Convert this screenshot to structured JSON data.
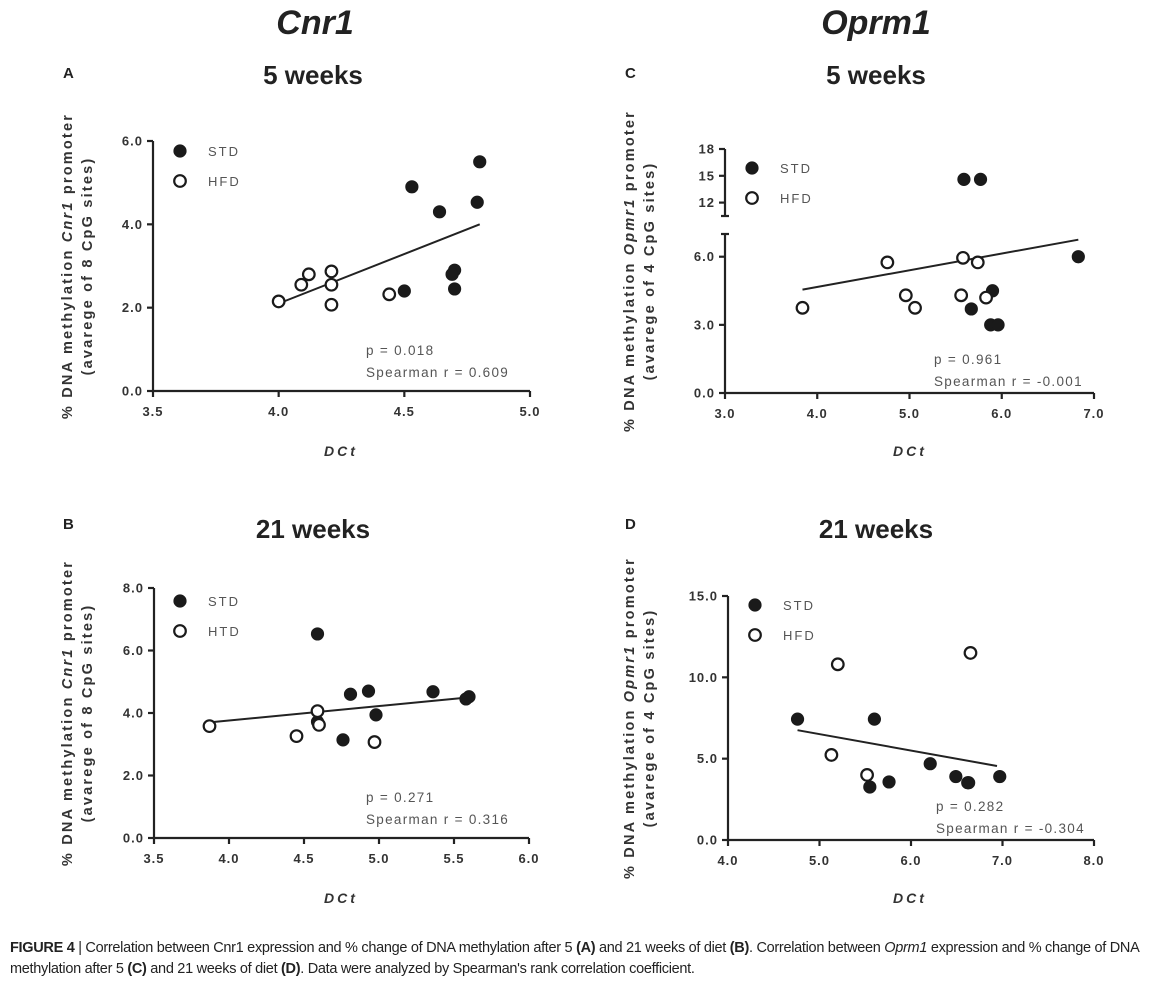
{
  "figure": {
    "gene_titles": [
      "Cnr1",
      "Oprm1"
    ],
    "caption": {
      "label": "FIGURE 4",
      "separator": " | ",
      "part1": "Correlation between Cnr1 expression and % change of DNA methylation after 5 ",
      "refA": "(A)",
      "part2": " and 21 weeks of diet ",
      "refB": "(B)",
      "part3": ". Correlation between ",
      "gene_italic": "Oprm1",
      "part4": " expression and % change of DNA methylation after 5 ",
      "refC": "(C)",
      "part5": " and 21 weeks of diet ",
      "refD": "(D)",
      "part6": ". Data were analyzed by Spearman's rank correlation coefficient."
    }
  },
  "chart_data": [
    {
      "panel": "A",
      "type": "scatter",
      "title": "5 weeks",
      "gene": "Cnr1",
      "xlabel": "DCt",
      "ylabel_line1_pre": "% DNA methylation ",
      "ylabel_line1_gene": "Cnr1",
      "ylabel_line1_post": " promoter",
      "ylabel_line2": "(avarege of 8 CpG sites)",
      "xlim": [
        3.5,
        5.0
      ],
      "xticks": [
        3.5,
        4.0,
        4.5,
        5.0
      ],
      "xtick_labels": [
        "3.5",
        "4.0",
        "4.5",
        "5.0"
      ],
      "ylim": [
        0,
        6.0
      ],
      "yticks": [
        0,
        2.0,
        4.0,
        6.0
      ],
      "ytick_labels": [
        "0.0",
        "2.0",
        "4.0",
        "6.0"
      ],
      "legend": "top-left",
      "series": [
        {
          "name": "STD",
          "marker": "filled-circle",
          "points": [
            [
              4.53,
              4.9
            ],
            [
              4.8,
              5.5
            ],
            [
              4.79,
              4.53
            ],
            [
              4.64,
              4.3
            ],
            [
              4.7,
              2.9
            ],
            [
              4.69,
              2.8
            ],
            [
              4.7,
              2.45
            ],
            [
              4.5,
              2.4
            ]
          ]
        },
        {
          "name": "HFD",
          "marker": "open-circle",
          "points": [
            [
              4.0,
              2.15
            ],
            [
              4.09,
              2.55
            ],
            [
              4.12,
              2.8
            ],
            [
              4.21,
              2.87
            ],
            [
              4.21,
              2.55
            ],
            [
              4.21,
              2.07
            ],
            [
              4.44,
              2.32
            ]
          ]
        }
      ],
      "fit_line": [
        [
          4.0,
          2.1
        ],
        [
          4.8,
          4.0
        ]
      ],
      "stats": {
        "p_text": "p = 0.018",
        "r_text": "Spearman r = 0.609",
        "p": 0.018,
        "r": 0.609
      }
    },
    {
      "panel": "B",
      "type": "scatter",
      "title": "21 weeks",
      "gene": "Cnr1",
      "xlabel": "DCt",
      "ylabel_line1_pre": "% DNA methylation ",
      "ylabel_line1_gene": "Cnr1",
      "ylabel_line1_post": " promoter",
      "ylabel_line2": "(avarege of 8 CpG sites)",
      "xlim": [
        3.5,
        6.0
      ],
      "xticks": [
        3.5,
        4.0,
        4.5,
        5.0,
        5.5,
        6.0
      ],
      "xtick_labels": [
        "3.5",
        "4.0",
        "4.5",
        "5.0",
        "5.5",
        "6.0"
      ],
      "ylim": [
        0,
        8.0
      ],
      "yticks": [
        0,
        2.0,
        4.0,
        6.0,
        8.0
      ],
      "ytick_labels": [
        "0.0",
        "2.0",
        "4.0",
        "6.0",
        "8.0"
      ],
      "legend": "top-left",
      "series": [
        {
          "name": "STD",
          "marker": "filled-circle",
          "points": [
            [
              4.59,
              6.53
            ],
            [
              4.81,
              4.6
            ],
            [
              4.93,
              4.7
            ],
            [
              5.36,
              4.68
            ],
            [
              5.6,
              4.52
            ],
            [
              5.58,
              4.45
            ],
            [
              4.98,
              3.94
            ],
            [
              4.59,
              3.72
            ],
            [
              4.76,
              3.14
            ]
          ]
        },
        {
          "name": "HTD",
          "marker": "open-circle",
          "points": [
            [
              3.87,
              3.58
            ],
            [
              4.59,
              4.06
            ],
            [
              4.6,
              3.62
            ],
            [
              4.45,
              3.26
            ],
            [
              4.97,
              3.07
            ]
          ]
        }
      ],
      "fit_line": [
        [
          3.87,
          3.7
        ],
        [
          5.6,
          4.5
        ]
      ],
      "stats": {
        "p_text": "p = 0.271",
        "r_text": "Spearman r = 0.316",
        "p": 0.271,
        "r": 0.316
      }
    },
    {
      "panel": "C",
      "type": "scatter",
      "title": "5 weeks",
      "gene": "Oprm1",
      "xlabel": "DCt",
      "ylabel_line1_pre": "% DNA methylation ",
      "ylabel_line1_gene": "Opmr1",
      "ylabel_line1_post": " promoter",
      "ylabel_line2": "(avarege of 4 CpG sites)",
      "xlim": [
        3.0,
        7.0
      ],
      "xticks": [
        3.0,
        4.0,
        5.0,
        6.0,
        7.0
      ],
      "xtick_labels": [
        "3.0",
        "4.0",
        "5.0",
        "6.0",
        "7.0"
      ],
      "ylim": [
        0,
        18
      ],
      "y_break": {
        "lower": [
          0,
          7.0
        ],
        "upper": [
          10.5,
          18
        ]
      },
      "yticks": [
        0,
        3.0,
        6.0,
        12,
        15,
        18
      ],
      "ytick_labels": [
        "0.0",
        "3.0",
        "6.0",
        "12",
        "15",
        "18"
      ],
      "legend": "top-left",
      "series": [
        {
          "name": "STD",
          "marker": "filled-circle",
          "points": [
            [
              5.59,
              14.6
            ],
            [
              5.77,
              14.6
            ],
            [
              6.83,
              6.0
            ],
            [
              5.9,
              4.5
            ],
            [
              5.67,
              3.7
            ],
            [
              5.88,
              3.0
            ],
            [
              5.96,
              3.0
            ]
          ]
        },
        {
          "name": "HFD",
          "marker": "open-circle",
          "points": [
            [
              3.84,
              3.75
            ],
            [
              4.76,
              5.75
            ],
            [
              4.96,
              4.3
            ],
            [
              5.06,
              3.75
            ],
            [
              5.58,
              5.95
            ],
            [
              5.74,
              5.75
            ],
            [
              5.56,
              4.3
            ],
            [
              5.83,
              4.2
            ]
          ]
        }
      ],
      "fit_line": [
        [
          3.84,
          4.55
        ],
        [
          6.83,
          6.75
        ]
      ],
      "stats": {
        "p_text": "p = 0.961",
        "r_text": "Spearman r = -0.001",
        "p": 0.961,
        "r": -0.001
      }
    },
    {
      "panel": "D",
      "type": "scatter",
      "title": "21 weeks",
      "gene": "Oprm1",
      "xlabel": "DCt",
      "ylabel_line1_pre": "% DNA methylation ",
      "ylabel_line1_gene": "Opmr1",
      "ylabel_line1_post": " promoter",
      "ylabel_line2": "(avarege of 4 CpG sites)",
      "xlim": [
        4.0,
        8.0
      ],
      "xticks": [
        4.0,
        5.0,
        6.0,
        7.0,
        8.0
      ],
      "xtick_labels": [
        "4.0",
        "5.0",
        "6.0",
        "7.0",
        "8.0"
      ],
      "ylim": [
        0,
        15.0
      ],
      "yticks": [
        0,
        5.0,
        10.0,
        15.0
      ],
      "ytick_labels": [
        "0.0",
        "5.0",
        "10.0",
        "15.0"
      ],
      "legend": "top-left",
      "series": [
        {
          "name": "STD",
          "marker": "filled-circle",
          "points": [
            [
              4.76,
              7.43
            ],
            [
              5.6,
              7.43
            ],
            [
              6.21,
              4.69
            ],
            [
              6.49,
              3.9
            ],
            [
              6.63,
              3.52
            ],
            [
              6.62,
              3.52
            ],
            [
              6.97,
              3.9
            ],
            [
              5.76,
              3.57
            ],
            [
              5.55,
              3.26
            ]
          ]
        },
        {
          "name": "HFD",
          "marker": "open-circle",
          "points": [
            [
              5.2,
              10.8
            ],
            [
              6.65,
              11.5
            ],
            [
              5.13,
              5.23
            ],
            [
              5.52,
              4.0
            ]
          ]
        }
      ],
      "fit_line": [
        [
          4.76,
          6.75
        ],
        [
          6.94,
          4.55
        ]
      ],
      "stats": {
        "p_text": "p = 0.282",
        "r_text": "Spearman r = -0.304",
        "p": 0.282,
        "r": -0.304
      }
    }
  ]
}
